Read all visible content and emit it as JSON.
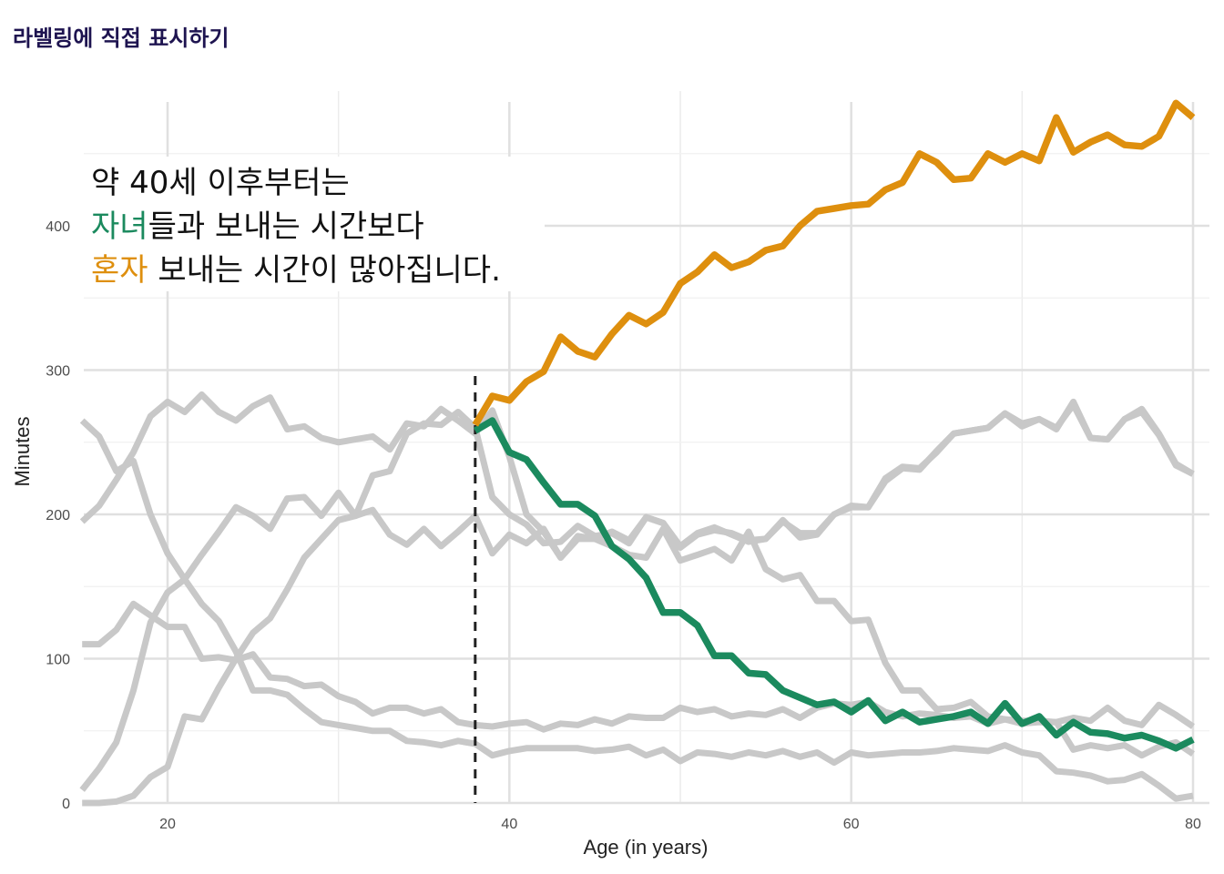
{
  "title": "라벨링에 직접 표시하기",
  "colors": {
    "teal": "#1b8a5e",
    "orange": "#de8f0e",
    "gray": "#c8c8c8",
    "title": "#1e1450"
  },
  "annotation": {
    "line1": "약 40세 이후부터는",
    "line2_highlight": "자녀",
    "line2_rest": "들과 보내는 시간보다",
    "line3_highlight": "혼자",
    "line3_rest": " 보내는 시간이 많아집니다."
  },
  "chart_data": {
    "type": "line",
    "xlabel": "Age (in years)",
    "ylabel": "Minutes",
    "xlim": [
      15,
      80
    ],
    "ylim": [
      0,
      480
    ],
    "x_ticks": [
      "20",
      "40",
      "60",
      "80"
    ],
    "y_ticks": [
      "0",
      "100",
      "200",
      "300",
      "400"
    ],
    "grid": true,
    "reference_line": {
      "x": 38,
      "style": "dashed"
    },
    "x": [
      15,
      16,
      17,
      18,
      19,
      20,
      21,
      22,
      23,
      24,
      25,
      26,
      27,
      28,
      29,
      30,
      31,
      32,
      33,
      34,
      35,
      36,
      37,
      38,
      39,
      40,
      41,
      42,
      43,
      44,
      45,
      46,
      47,
      48,
      49,
      50,
      51,
      52,
      53,
      54,
      55,
      56,
      57,
      58,
      59,
      60,
      61,
      62,
      63,
      64,
      65,
      66,
      67,
      68,
      69,
      70,
      71,
      72,
      73,
      74,
      75,
      76,
      77,
      78,
      79,
      80
    ],
    "series": [
      {
        "color": "gray",
        "values": [
          265,
          254,
          230,
          237,
          200,
          173,
          155,
          138,
          126,
          105,
          78,
          78,
          75,
          65,
          56,
          54,
          52,
          50,
          50,
          43,
          42,
          40,
          43,
          41,
          33,
          36,
          38,
          38,
          38,
          38,
          36,
          37,
          39,
          33,
          37,
          29,
          35,
          34,
          32,
          35,
          33,
          36,
          32,
          35,
          28,
          35,
          33,
          34,
          35,
          35,
          36,
          38,
          37,
          36,
          40,
          35,
          33,
          22,
          21,
          19,
          15,
          16,
          20,
          12,
          3,
          5
        ]
      },
      {
        "color": "gray",
        "values": [
          195,
          206,
          224,
          243,
          268,
          278,
          271,
          283,
          271,
          265,
          275,
          281,
          259,
          261,
          253,
          250,
          252,
          254,
          245,
          263,
          261,
          273,
          265,
          256,
          272,
          240,
          200,
          188,
          170,
          185,
          183,
          178,
          172,
          170,
          190,
          168,
          172,
          176,
          168,
          188,
          162,
          155,
          158,
          140,
          140,
          126,
          127,
          97,
          78,
          78,
          65,
          66,
          70,
          60,
          58,
          57,
          57,
          56,
          37,
          40,
          38,
          40,
          33,
          39,
          42,
          34
        ]
      },
      {
        "color": "gray",
        "values": [
          9,
          24,
          42,
          78,
          125,
          146,
          155,
          172,
          188,
          205,
          199,
          190,
          211,
          212,
          199,
          215,
          199,
          203,
          186,
          179,
          190,
          178,
          188,
          199,
          173,
          186,
          180,
          190,
          170,
          183,
          183,
          188,
          182,
          198,
          194,
          177,
          186,
          189,
          187,
          182,
          183,
          196,
          184,
          186,
          200,
          205,
          205,
          223,
          232,
          231,
          244,
          256,
          258,
          260,
          270,
          261,
          266,
          260,
          276,
          253,
          252,
          266,
          271,
          255,
          234,
          228
        ]
      },
      {
        "color": "gray",
        "values": [
          0,
          0,
          1,
          5,
          18,
          25,
          60,
          58,
          80,
          100,
          118,
          128,
          148,
          170,
          183,
          196,
          199,
          227,
          230,
          256,
          263,
          262,
          271,
          260,
          212,
          200,
          193,
          180,
          181,
          192,
          185,
          187,
          180,
          198,
          194,
          178,
          187,
          191,
          186,
          181,
          183,
          195,
          187,
          187,
          200,
          206,
          205,
          225,
          233,
          232,
          243,
          256,
          258,
          260,
          270,
          263,
          266,
          259,
          278,
          253,
          252,
          266,
          273,
          256,
          235,
          228
        ]
      },
      {
        "color": "gray",
        "values": [
          110,
          110,
          120,
          138,
          130,
          122,
          122,
          100,
          101,
          99,
          103,
          87,
          86,
          81,
          82,
          74,
          70,
          62,
          66,
          66,
          62,
          65,
          56,
          54,
          53,
          55,
          56,
          51,
          55,
          54,
          58,
          55,
          60,
          59,
          59,
          66,
          63,
          65,
          60,
          62,
          61,
          65,
          59,
          66,
          69,
          68,
          70,
          63,
          60,
          62,
          61,
          59,
          60,
          55,
          58,
          55,
          56,
          56,
          59,
          57,
          66,
          57,
          54,
          68,
          61,
          53
        ]
      },
      {
        "color": "teal",
        "values": [
          null,
          null,
          null,
          null,
          null,
          null,
          null,
          null,
          null,
          null,
          null,
          null,
          null,
          null,
          null,
          null,
          null,
          null,
          null,
          null,
          null,
          null,
          null,
          258,
          265,
          243,
          238,
          222,
          207,
          207,
          199,
          178,
          169,
          156,
          132,
          132,
          123,
          102,
          102,
          90,
          89,
          78,
          73,
          68,
          70,
          63,
          71,
          57,
          63,
          56,
          58,
          60,
          63,
          55,
          69,
          55,
          60,
          47,
          56,
          49,
          48,
          45,
          47,
          43,
          38,
          44
        ]
      },
      {
        "color": "orange",
        "values": [
          null,
          null,
          null,
          null,
          null,
          null,
          null,
          null,
          null,
          null,
          null,
          null,
          null,
          null,
          null,
          null,
          null,
          null,
          null,
          null,
          null,
          null,
          null,
          262,
          282,
          279,
          292,
          299,
          323,
          313,
          309,
          325,
          338,
          332,
          340,
          360,
          368,
          380,
          371,
          375,
          383,
          386,
          400,
          410,
          412,
          414,
          415,
          425,
          430,
          450,
          444,
          432,
          433,
          450,
          444,
          450,
          445,
          475,
          451,
          458,
          463,
          456,
          455,
          462,
          485,
          475
        ]
      }
    ]
  }
}
